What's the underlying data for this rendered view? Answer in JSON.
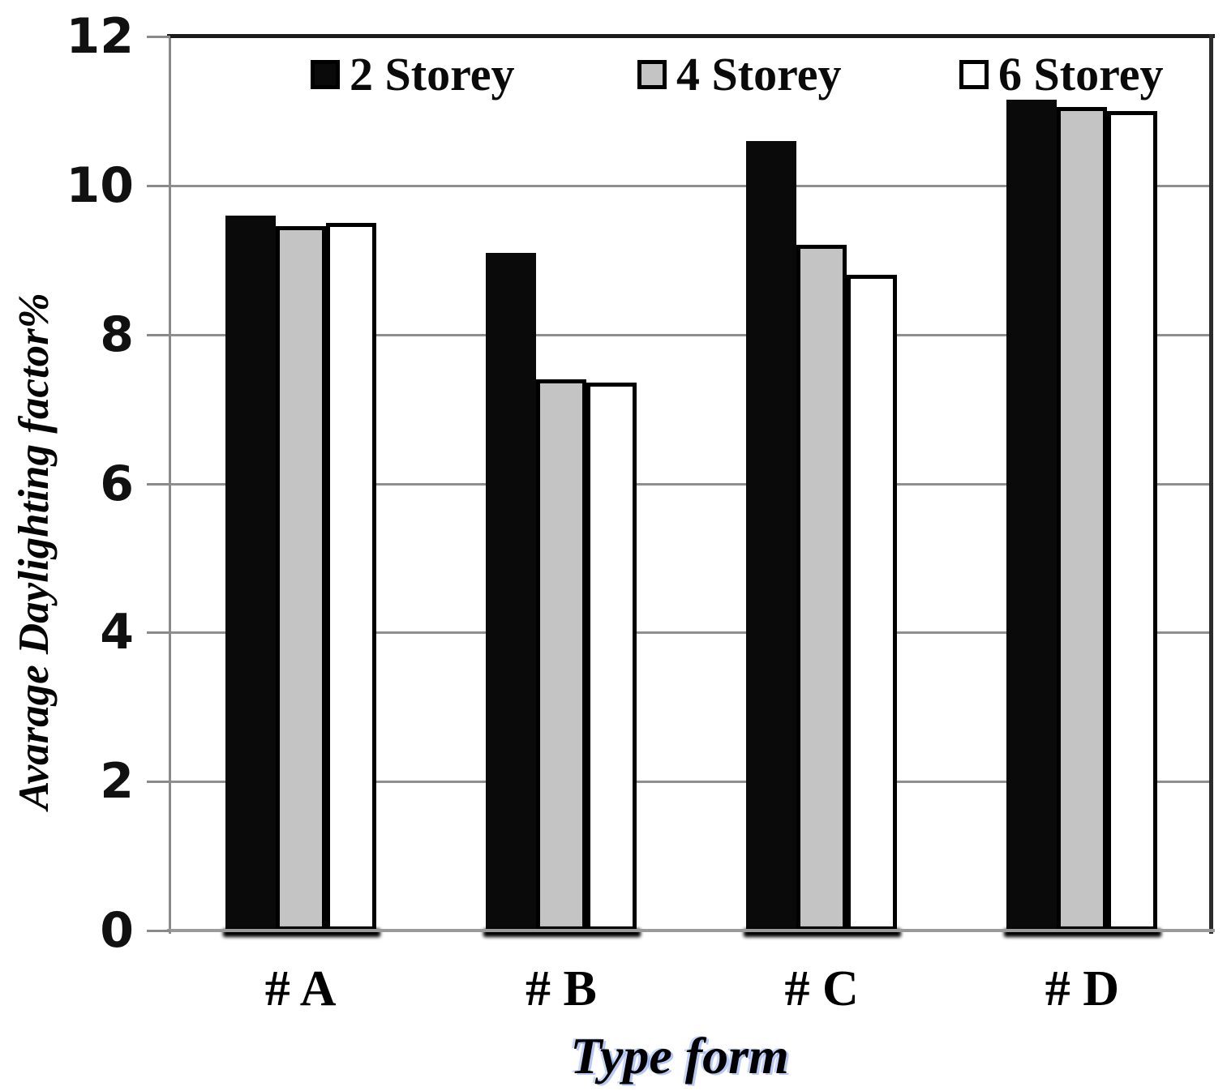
{
  "chart_data": {
    "type": "bar",
    "title": "",
    "categories": [
      "# A",
      "# B",
      "# C",
      "# D"
    ],
    "series": [
      {
        "name": "2 Storey",
        "color": "#0a0a0a",
        "outlined": false,
        "values": [
          9.6,
          9.1,
          10.6,
          11.15
        ]
      },
      {
        "name": "4 Storey",
        "color": "#c4c4c4",
        "outlined": true,
        "values": [
          9.45,
          7.4,
          9.2,
          11.05
        ]
      },
      {
        "name": "6 Storey",
        "color": "#ffffff",
        "outlined": true,
        "values": [
          9.5,
          7.35,
          8.8,
          11.0
        ]
      }
    ],
    "xlabel": "Type form",
    "ylabel": "Avarage Daylighting factor%",
    "ylim": [
      0,
      12
    ],
    "ytick_interval": 2,
    "ytick_labels": [
      "0",
      "2",
      "4",
      "6",
      "8",
      "10",
      "12"
    ],
    "grid": "horizontal-only",
    "legend_position": "top-inside"
  },
  "colors": {
    "gridline": "#8f8f8f",
    "axis_gray": "#8a8a8a",
    "plot_border_dark": "#1b1b1b",
    "bar_black": "#0a0a0a",
    "bar_gray": "#c4c4c4",
    "bar_white": "#ffffff",
    "text": "#000000"
  }
}
